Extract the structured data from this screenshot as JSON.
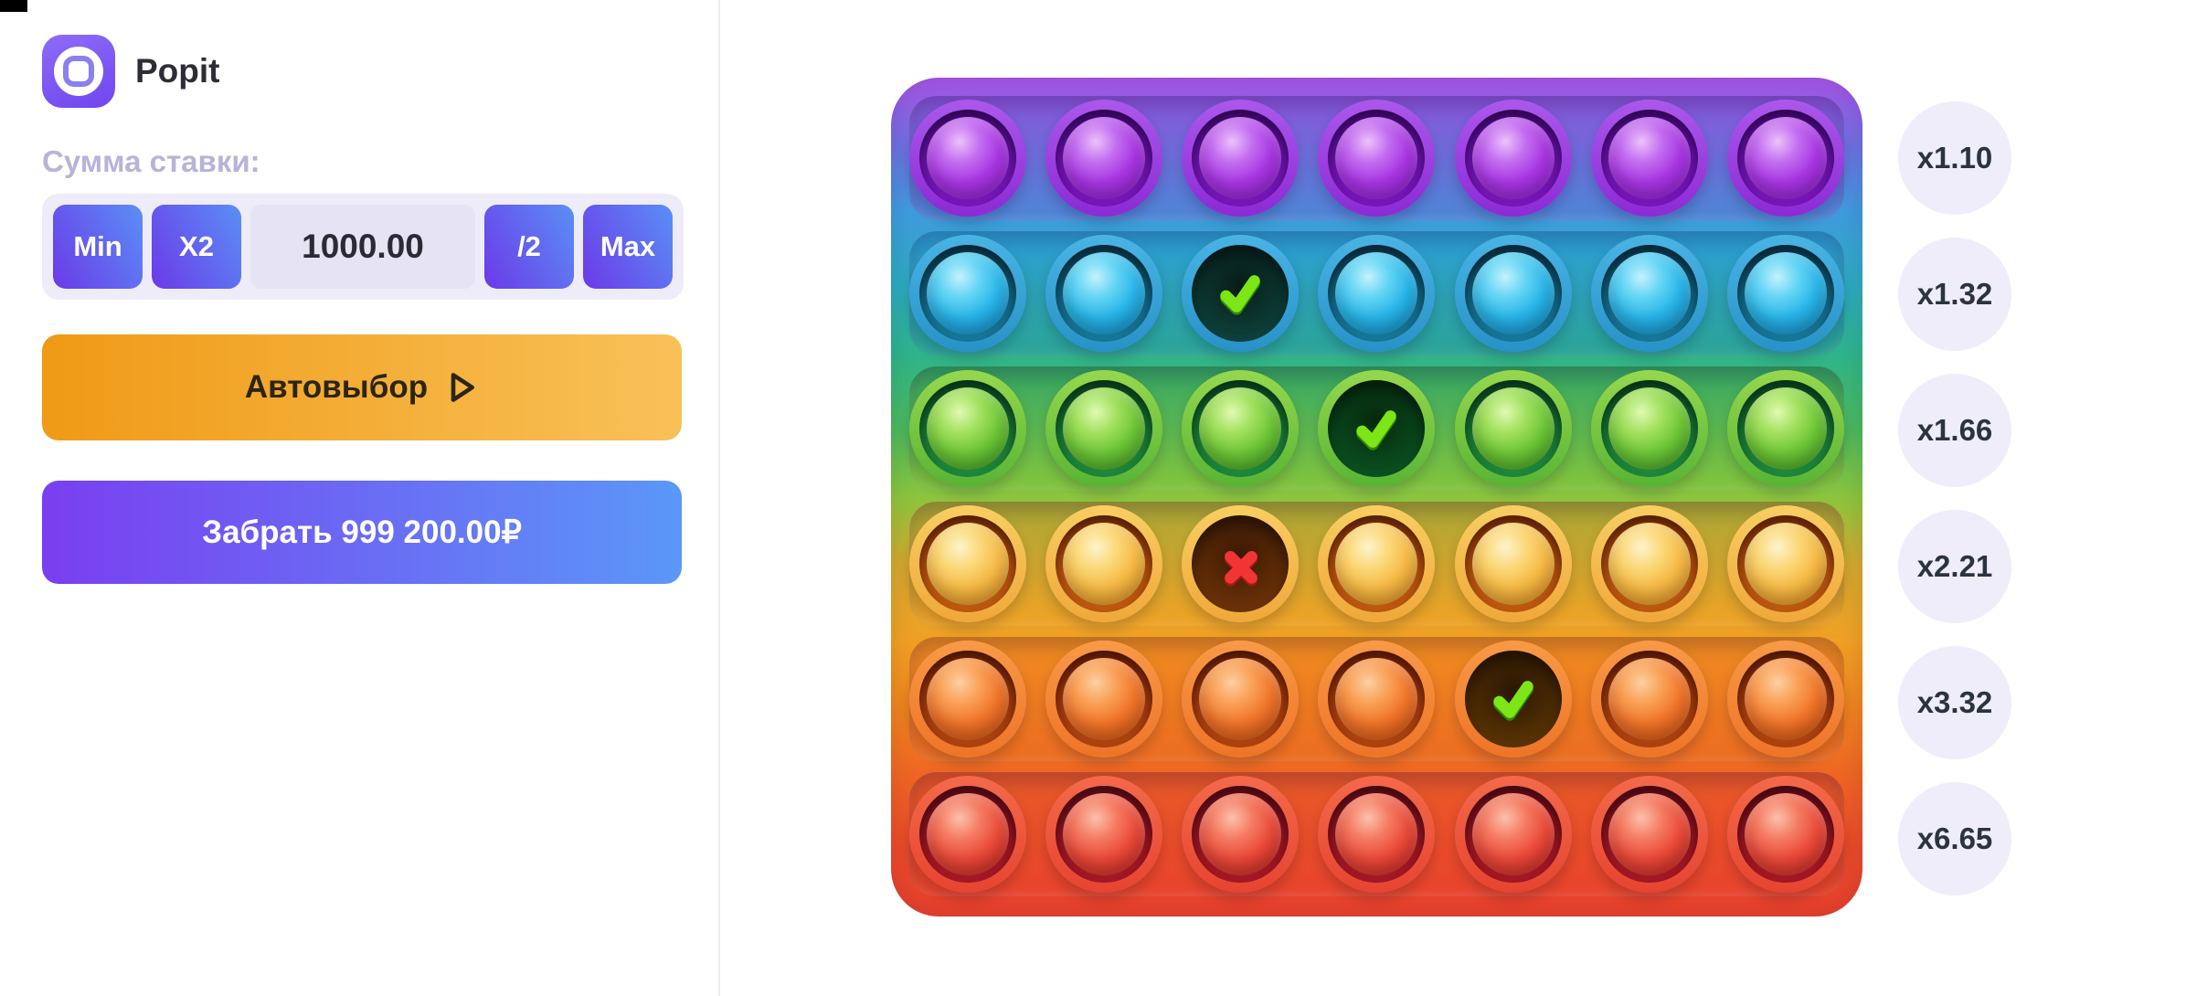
{
  "panel": {
    "title": "Popit",
    "bet_label": "Сумма ставки:",
    "bet_controls": {
      "min": "Min",
      "x2": "X2",
      "value": "1000.00",
      "half": "/2",
      "max": "Max"
    },
    "auto_button": "Автовыбор",
    "cashout_button": "Забрать 999 200.00₽"
  },
  "board": {
    "columns": 7,
    "rows": [
      {
        "color": "purple",
        "multiplier": "x1.10",
        "cells": [
          "idle",
          "idle",
          "idle",
          "idle",
          "idle",
          "idle",
          "idle"
        ]
      },
      {
        "color": "blue",
        "multiplier": "x1.32",
        "cells": [
          "idle",
          "idle",
          "win",
          "idle",
          "idle",
          "idle",
          "idle"
        ]
      },
      {
        "color": "green",
        "multiplier": "x1.66",
        "cells": [
          "idle",
          "idle",
          "idle",
          "win",
          "idle",
          "idle",
          "idle"
        ]
      },
      {
        "color": "yellow",
        "multiplier": "x2.21",
        "cells": [
          "idle",
          "idle",
          "lose",
          "idle",
          "idle",
          "idle",
          "idle"
        ]
      },
      {
        "color": "orange",
        "multiplier": "x3.32",
        "cells": [
          "idle",
          "idle",
          "idle",
          "idle",
          "win",
          "idle",
          "idle"
        ]
      },
      {
        "color": "red",
        "multiplier": "x6.65",
        "cells": [
          "idle",
          "idle",
          "idle",
          "idle",
          "idle",
          "idle",
          "idle"
        ]
      }
    ]
  },
  "palette": {
    "brand_purple": "#7b55f2",
    "bet_button_gradient": [
      "#6c39e8",
      "#5a8ff6"
    ],
    "auto_button_gradient": [
      "#f09a16",
      "#f8c158"
    ],
    "cashout_gradient": [
      "#7a3ef0",
      "#5b97f8"
    ],
    "bet_label_color": "#b7b3d9",
    "badge_bg": "#efedf9",
    "win_check_color": "#7ce616",
    "lose_cross_color": "#f23434",
    "row_bubble_colors": {
      "purple": "#a836e2",
      "blue": "#28b4e8",
      "green": "#6ec636",
      "yellow": "#f5b945",
      "orange": "#f0742a",
      "red": "#ea4a38"
    }
  }
}
